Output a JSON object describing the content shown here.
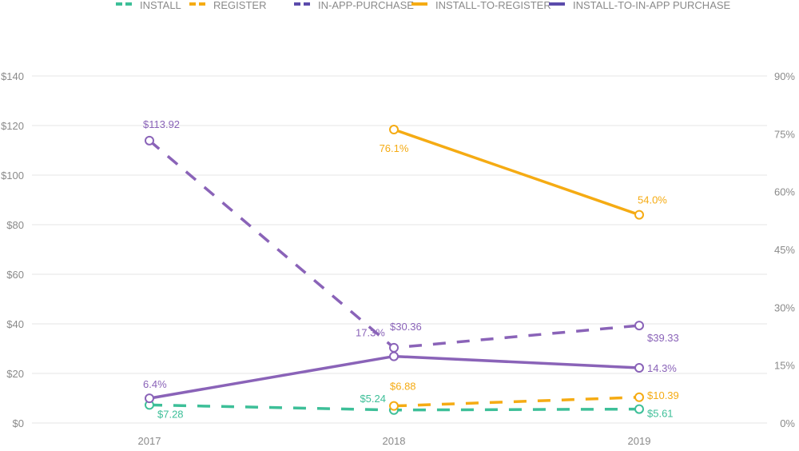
{
  "chart_data": {
    "type": "line",
    "categories": [
      "2017",
      "2018",
      "2019"
    ],
    "left_axis": {
      "ylim": [
        0,
        140
      ],
      "ticks": [
        "$0",
        "$20",
        "$40",
        "$60",
        "$80",
        "$100",
        "$120",
        "$140"
      ],
      "tick_values": [
        0,
        20,
        40,
        60,
        80,
        100,
        120,
        140
      ]
    },
    "right_axis": {
      "ylim": [
        0,
        90
      ],
      "ticks": [
        "0%",
        "15%",
        "30%",
        "45%",
        "60%",
        "75%",
        "90%"
      ],
      "tick_values": [
        0,
        15,
        30,
        45,
        60,
        75,
        90
      ]
    },
    "grid": true,
    "legend": "top",
    "series": [
      {
        "name": "INSTALL",
        "axis": "left",
        "style": "dashed",
        "color": "#3dbf98",
        "values": [
          7.28,
          5.24,
          5.61
        ],
        "labels": [
          "$7.28",
          "$5.24",
          "$5.61"
        ]
      },
      {
        "name": "REGISTER",
        "axis": "left",
        "style": "dashed",
        "color": "#f5ab13",
        "values": [
          null,
          6.88,
          10.39
        ],
        "labels": [
          null,
          "$6.88",
          "$10.39"
        ]
      },
      {
        "name": "IN-APP-PURCHASE",
        "axis": "left",
        "style": "dashed",
        "color": "#8a63b8",
        "legend_color": "#5b4bab",
        "values": [
          113.92,
          30.36,
          39.33
        ],
        "labels": [
          "$113.92",
          "$30.36",
          "$39.33"
        ]
      },
      {
        "name": "INSTALL-TO-REGISTER",
        "axis": "right",
        "style": "solid",
        "color": "#f5ab13",
        "values": [
          null,
          76.1,
          54.0
        ],
        "labels": [
          null,
          "76.1%",
          "54.0%"
        ]
      },
      {
        "name": "INSTALL-TO-IN-APP PURCHASE",
        "axis": "right",
        "style": "solid",
        "color": "#8a63b8",
        "legend_color": "#5b4bab",
        "values": [
          6.4,
          17.3,
          14.3
        ],
        "labels": [
          "6.4%",
          "17.3%",
          "14.3%"
        ]
      }
    ]
  }
}
